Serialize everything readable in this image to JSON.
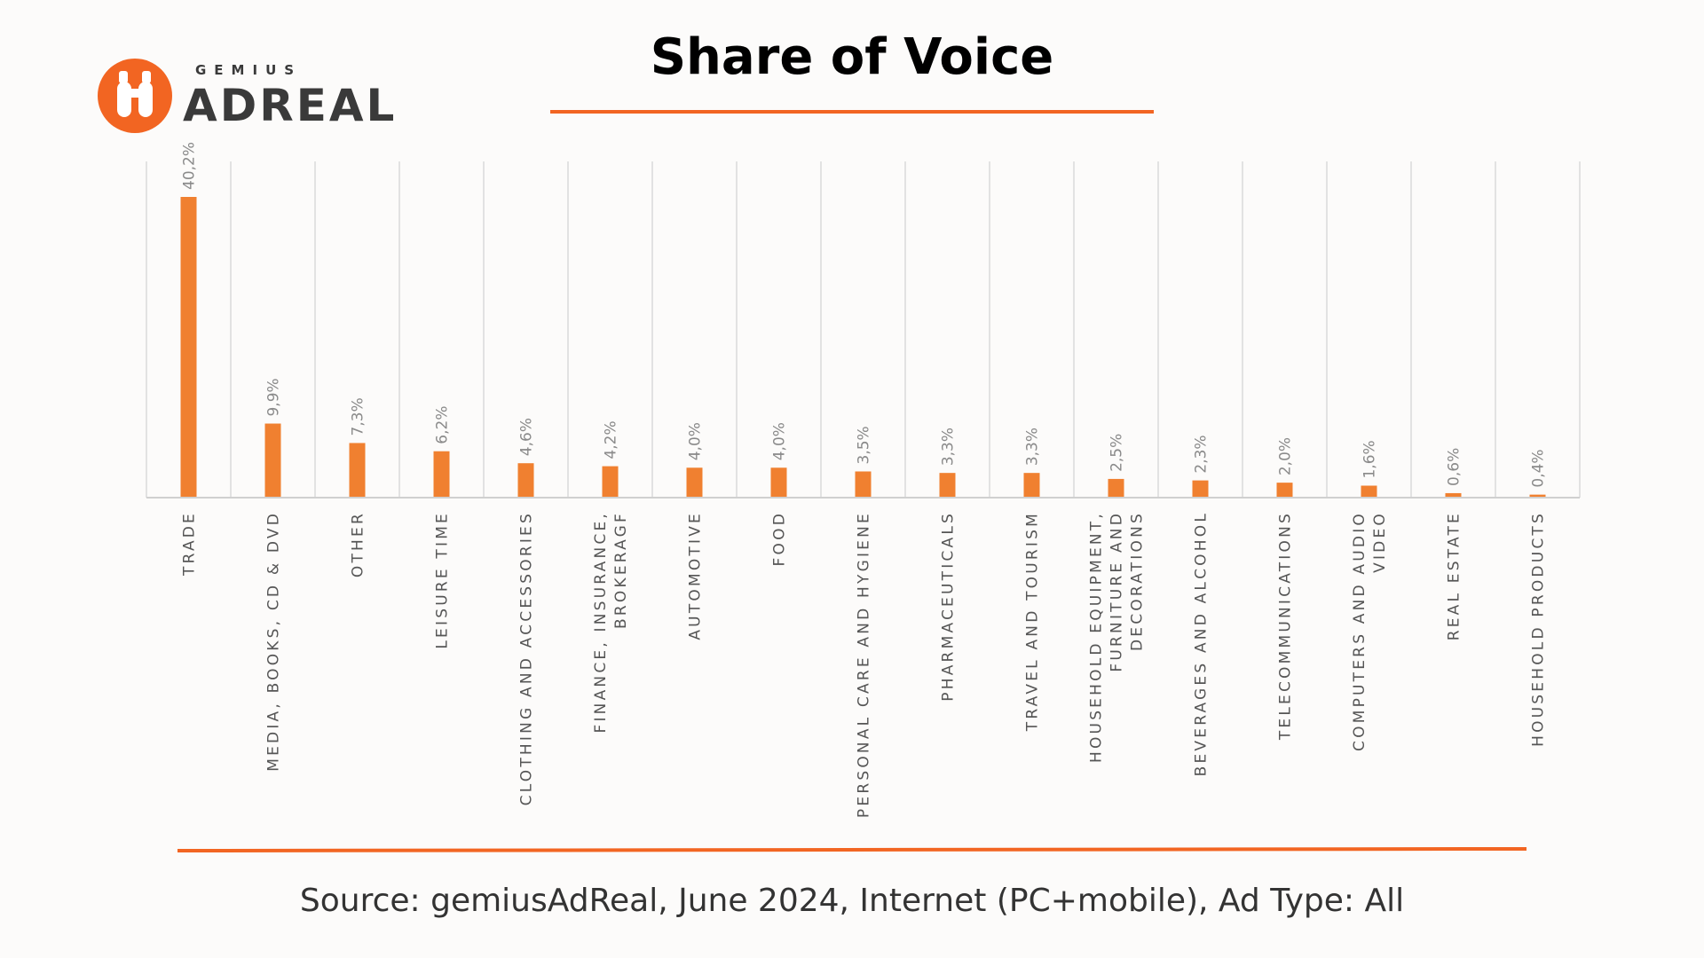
{
  "brand": {
    "small": "GEMIUS",
    "big": "ADREAL"
  },
  "title": "Share of Voice",
  "source": "Source: gemiusAdReal, June 2024, Internet (PC+mobile), Ad Type: All",
  "colors": {
    "bar": "#f08030",
    "accent": "#f26522",
    "grid": "#e2e2e2",
    "text": "#555555"
  },
  "chart_data": {
    "type": "bar",
    "title": "Share of Voice",
    "categories": [
      [
        "TRADE"
      ],
      [
        "MEDIA, BOOKS, CD & DVD"
      ],
      [
        "OTHER"
      ],
      [
        "LEISURE TIME"
      ],
      [
        "CLOTHING AND ACCESSORIES"
      ],
      [
        "FINANCE, INSURANCE,",
        "BROKERAGF"
      ],
      [
        "AUTOMOTIVE"
      ],
      [
        "FOOD"
      ],
      [
        "PERSONAL CARE AND HYGIENE"
      ],
      [
        "PHARMACEUTICALS"
      ],
      [
        "TRAVEL AND TOURISM"
      ],
      [
        "HOUSEHOLD EQUIPMENT,",
        "FURNITURE AND",
        "DECORATIONS"
      ],
      [
        "BEVERAGES AND ALCOHOL"
      ],
      [
        "TELECOMMUNICATIONS"
      ],
      [
        "COMPUTERS AND AUDIO",
        "VIDEO"
      ],
      [
        "REAL ESTATE"
      ],
      [
        "HOUSEHOLD PRODUCTS"
      ]
    ],
    "values": [
      40.2,
      9.9,
      7.3,
      6.2,
      4.6,
      4.2,
      4.0,
      4.0,
      3.5,
      3.3,
      3.3,
      2.5,
      2.3,
      2.0,
      1.6,
      0.6,
      0.4
    ],
    "data_labels": [
      "40,2%",
      "9,9%",
      "7,3%",
      "6,2%",
      "4,6%",
      "4,2%",
      "4,0%",
      "4,0%",
      "3,5%",
      "3,3%",
      "3,3%",
      "2,5%",
      "2,3%",
      "2,0%",
      "1,6%",
      "0,6%",
      "0,4%"
    ],
    "ylim": [
      0,
      45
    ],
    "grid": "vertical separators",
    "legend": "none"
  }
}
